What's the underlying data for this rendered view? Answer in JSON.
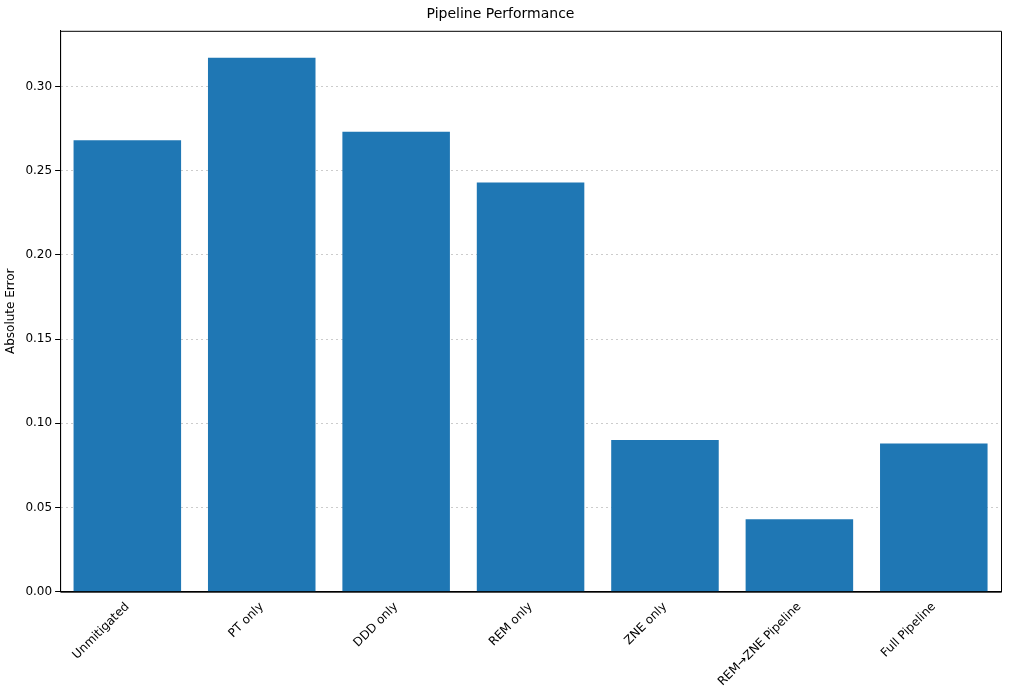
{
  "chart_data": {
    "type": "bar",
    "title": "Pipeline Performance",
    "ylabel": "Absolute Error",
    "categories": [
      "Unmitigated",
      "PT only",
      "DDD only",
      "REM only",
      "ZNE only",
      "REM→ZNE Pipeline",
      "Full Pipeline"
    ],
    "values": [
      0.268,
      0.317,
      0.273,
      0.243,
      0.09,
      0.043,
      0.088
    ],
    "color": "#1f77b4",
    "ylim": [
      0,
      0.333
    ],
    "yticks": [
      {
        "value": 0,
        "label": "0.00"
      },
      {
        "value": 0.05,
        "label": "0.05"
      },
      {
        "value": 0.1,
        "label": "0.10"
      },
      {
        "value": 0.15,
        "label": "0.15"
      },
      {
        "value": 0.2,
        "label": "0.20"
      },
      {
        "value": 0.25,
        "label": "0.25"
      },
      {
        "value": 0.3,
        "label": "0.30"
      }
    ],
    "grid": "y",
    "legend": false
  }
}
